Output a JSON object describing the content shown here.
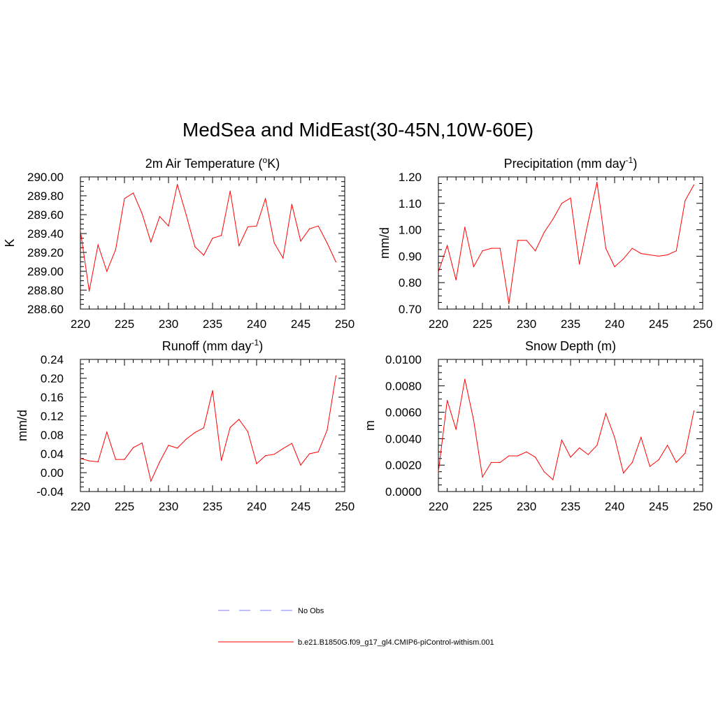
{
  "title": "MedSea and MidEast(30-45N,10W-60E)",
  "colors": {
    "series": "#ff0000",
    "obs": "#9999ff",
    "axis": "#000000"
  },
  "legend": [
    {
      "label": "No Obs",
      "style": "dashed",
      "color": "#9999ff"
    },
    {
      "label": "b.e21.B1850G.f09_g17_gl4.CMIP6-piControl-withism.001",
      "style": "solid",
      "color": "#ff0000"
    }
  ],
  "chart_data": [
    {
      "type": "line",
      "title": "2m Air Temperature (",
      "title_sup": "o",
      "title_tail": "K)",
      "ylabel": "K",
      "xlim": [
        220,
        250
      ],
      "ylim": [
        288.6,
        290.0
      ],
      "xticks": [
        220,
        225,
        230,
        235,
        240,
        245,
        250
      ],
      "yticks": [
        288.6,
        288.8,
        289.0,
        289.2,
        289.4,
        289.6,
        289.8,
        290.0
      ],
      "yticklabels": [
        "288.60",
        "288.80",
        "289.00",
        "289.20",
        "289.40",
        "289.60",
        "289.80",
        "290.00"
      ],
      "series": [
        {
          "name": "b.e21.B1850G.f09_g17_gl4.CMIP6-piControl-withism.001",
          "x": [
            220,
            221,
            222,
            223,
            224,
            225,
            226,
            227,
            228,
            229,
            230,
            231,
            232,
            233,
            234,
            235,
            236,
            237,
            238,
            239,
            240,
            241,
            242,
            243,
            244,
            245,
            246,
            247,
            248,
            249
          ],
          "y": [
            289.43,
            288.79,
            289.28,
            289.0,
            289.23,
            289.77,
            289.83,
            289.61,
            289.31,
            289.58,
            289.48,
            289.92,
            289.6,
            289.26,
            289.17,
            289.35,
            289.38,
            289.85,
            289.27,
            289.47,
            289.48,
            289.77,
            289.3,
            289.14,
            289.71,
            289.32,
            289.45,
            289.48,
            289.3,
            289.1
          ]
        }
      ]
    },
    {
      "type": "line",
      "title": "Precipitation (mm day",
      "title_sup": "-1",
      "title_tail": ")",
      "ylabel": "mm/d",
      "xlim": [
        220,
        250
      ],
      "ylim": [
        0.7,
        1.2
      ],
      "xticks": [
        220,
        225,
        230,
        235,
        240,
        245,
        250
      ],
      "yticks": [
        0.7,
        0.8,
        0.9,
        1.0,
        1.1,
        1.2
      ],
      "yticklabels": [
        "0.70",
        "0.80",
        "0.90",
        "1.00",
        "1.10",
        "1.20"
      ],
      "series": [
        {
          "name": "b.e21.B1850G.f09_g17_gl4.CMIP6-piControl-withism.001",
          "x": [
            220,
            221,
            222,
            223,
            224,
            225,
            226,
            227,
            228,
            229,
            230,
            231,
            232,
            233,
            234,
            235,
            236,
            237,
            238,
            239,
            240,
            241,
            242,
            243,
            244,
            245,
            246,
            247,
            248,
            249
          ],
          "y": [
            0.84,
            0.94,
            0.81,
            1.01,
            0.86,
            0.92,
            0.93,
            0.93,
            0.72,
            0.96,
            0.96,
            0.92,
            0.99,
            1.04,
            1.1,
            1.12,
            0.87,
            1.03,
            1.18,
            0.93,
            0.86,
            0.89,
            0.93,
            0.91,
            0.905,
            0.9,
            0.905,
            0.92,
            1.11,
            1.17
          ]
        }
      ]
    },
    {
      "type": "line",
      "title": "Runoff (mm day",
      "title_sup": "-1",
      "title_tail": ")",
      "ylabel": "mm/d",
      "xlim": [
        220,
        250
      ],
      "ylim": [
        -0.04,
        0.24
      ],
      "xticks": [
        220,
        225,
        230,
        235,
        240,
        245,
        250
      ],
      "yticks": [
        -0.04,
        0.0,
        0.04,
        0.08,
        0.12,
        0.16,
        0.2,
        0.24
      ],
      "yticklabels": [
        "-0.04",
        "0.00",
        "0.04",
        "0.08",
        "0.12",
        "0.16",
        "0.20",
        "0.24"
      ],
      "series": [
        {
          "name": "b.e21.B1850G.f09_g17_gl4.CMIP6-piControl-withism.001",
          "x": [
            220,
            221,
            222,
            223,
            224,
            225,
            226,
            227,
            228,
            229,
            230,
            231,
            232,
            233,
            234,
            235,
            236,
            237,
            238,
            239,
            240,
            241,
            242,
            243,
            244,
            245,
            246,
            247,
            248,
            249
          ],
          "y": [
            0.03,
            0.025,
            0.023,
            0.086,
            0.028,
            0.028,
            0.053,
            0.063,
            -0.018,
            0.023,
            0.058,
            0.052,
            0.071,
            0.085,
            0.095,
            0.174,
            0.026,
            0.096,
            0.113,
            0.087,
            0.019,
            0.036,
            0.039,
            0.051,
            0.062,
            0.016,
            0.04,
            0.044,
            0.09,
            0.205
          ]
        }
      ]
    },
    {
      "type": "line",
      "title": "Snow Depth (m)",
      "title_sup": "",
      "title_tail": "",
      "ylabel": "m",
      "xlim": [
        220,
        250
      ],
      "ylim": [
        0.0,
        0.01
      ],
      "xticks": [
        220,
        225,
        230,
        235,
        240,
        245,
        250
      ],
      "yticks": [
        0.0,
        0.002,
        0.004,
        0.006,
        0.008,
        0.01
      ],
      "yticklabels": [
        "0.0000",
        "0.0020",
        "0.0040",
        "0.0060",
        "0.0080",
        "0.0100"
      ],
      "series": [
        {
          "name": "b.e21.B1850G.f09_g17_gl4.CMIP6-piControl-withism.001",
          "x": [
            220,
            221,
            222,
            223,
            224,
            225,
            226,
            227,
            228,
            229,
            230,
            231,
            232,
            233,
            234,
            235,
            236,
            237,
            238,
            239,
            240,
            241,
            242,
            243,
            244,
            245,
            246,
            247,
            248,
            249
          ],
          "y": [
            0.0015,
            0.0069,
            0.0047,
            0.0085,
            0.0054,
            0.0011,
            0.0022,
            0.0022,
            0.0027,
            0.0027,
            0.003,
            0.0026,
            0.0015,
            0.0009,
            0.0039,
            0.0026,
            0.0033,
            0.0028,
            0.0035,
            0.0059,
            0.0041,
            0.0014,
            0.0022,
            0.0041,
            0.0019,
            0.0024,
            0.0035,
            0.0022,
            0.0029,
            0.0061
          ]
        }
      ]
    }
  ]
}
